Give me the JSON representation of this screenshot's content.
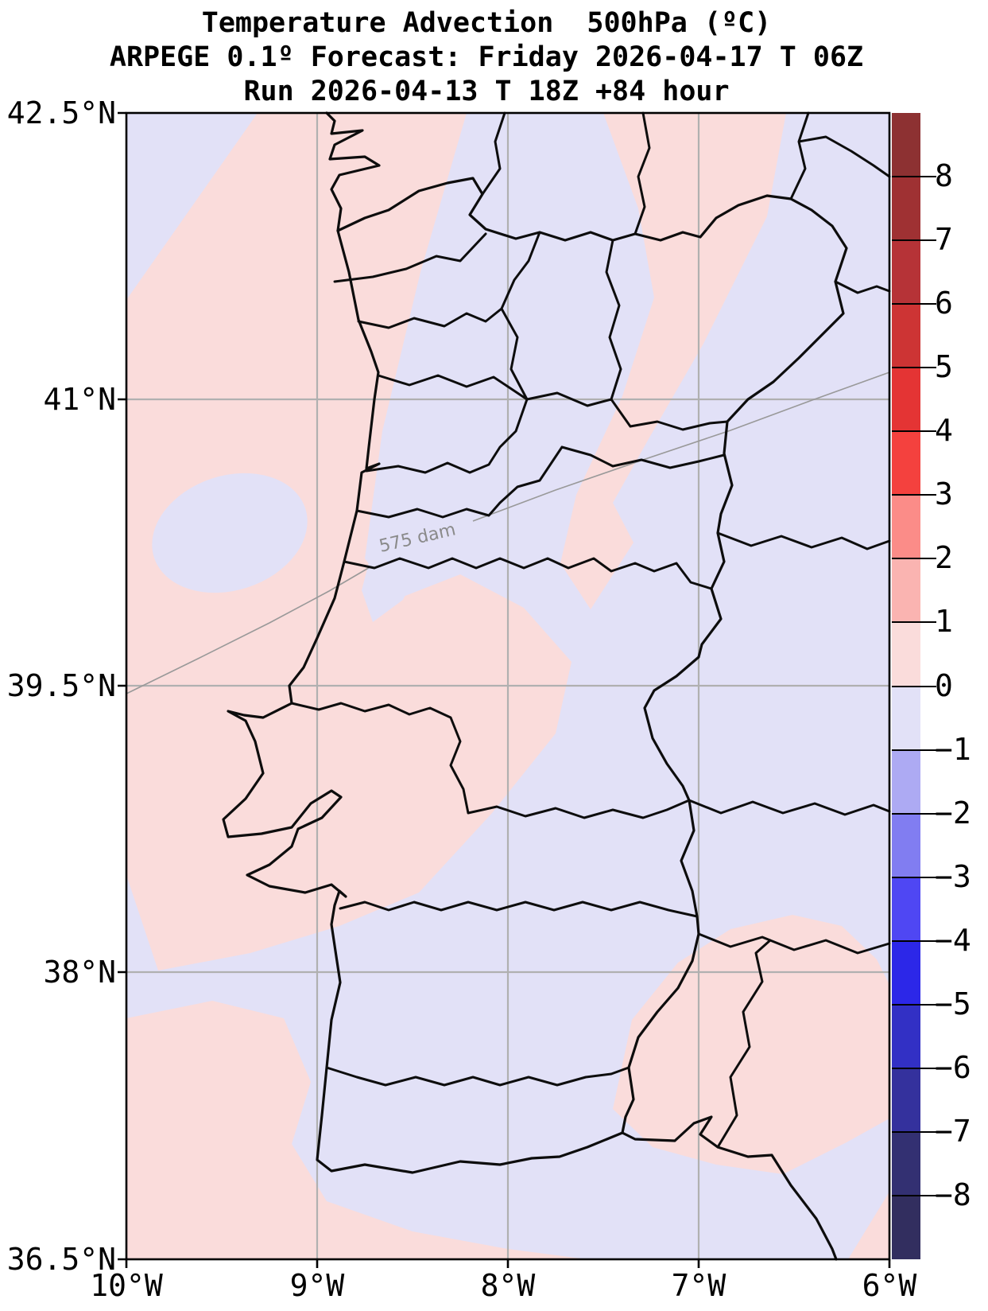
{
  "title": {
    "line1": "Temperature Advection  500hPa (ºC)",
    "line2": "ARPEGE 0.1º Forecast: Friday 2026-04-17 T 06Z",
    "line3": "Run 2026-04-13 T 18Z +84 hour"
  },
  "axes": {
    "lat_ticks": [
      "42.5°N",
      "41°N",
      "39.5°N",
      "38°N",
      "36.5°N"
    ],
    "lon_ticks": [
      "10°W",
      "9°W",
      "8°W",
      "7°W",
      "6°W"
    ]
  },
  "map": {
    "contour_label": "575 dam",
    "colors": {
      "positive_advection_0_1": "#fadcdb",
      "negative_advection_m1_0": "#e2e1f7",
      "gridline": "#b0b0b0",
      "contour": "#999999",
      "boundary": "#0d0d0d"
    }
  },
  "colorbar": {
    "min": -8,
    "max": 8,
    "tick_labels": [
      "8",
      "7",
      "6",
      "5",
      "4",
      "3",
      "2",
      "1",
      "0",
      "−1",
      "−2",
      "−3",
      "−4",
      "−5",
      "−6",
      "−7",
      "−8"
    ],
    "colors": [
      "#8d3132",
      "#9f3133",
      "#b63337",
      "#cd3434",
      "#e43434",
      "#f4413e",
      "#fb8c88",
      "#fab4b1",
      "#fadcdb",
      "#e2e1f7",
      "#adaaf3",
      "#817df1",
      "#4f47f3",
      "#2c27e8",
      "#3230c5",
      "#34319d",
      "#333072",
      "#322e5f"
    ]
  },
  "chart_data": {
    "type": "heatmap",
    "title": "Temperature Advection 500hPa (ºC)",
    "model": "ARPEGE 0.1º",
    "valid_time": "Friday 2026-04-17 T 06Z",
    "run": "2026-04-13 T 18Z",
    "lead": "+84 hour",
    "lon_ticks_deg": [
      "10°W",
      "9°W",
      "8°W",
      "7°W",
      "6°W"
    ],
    "lat_ticks_deg": [
      "42.5°N",
      "41°N",
      "39.5°N",
      "38°N",
      "36.5°N"
    ],
    "colorbar_levels": [
      -8,
      -7,
      -6,
      -5,
      -4,
      -3,
      -2,
      -1,
      0,
      1,
      2,
      3,
      4,
      5,
      6,
      7,
      8
    ],
    "field_values_shown": [
      "-1 to 0 (pale lavender over most land/sea)",
      "0 to 1 (pale pink bands NW ocean, central Portugal, NE Spain, south/SE patches)"
    ],
    "geopotential_contour": "575 dam",
    "legend_position": "right vertical colorbar"
  }
}
